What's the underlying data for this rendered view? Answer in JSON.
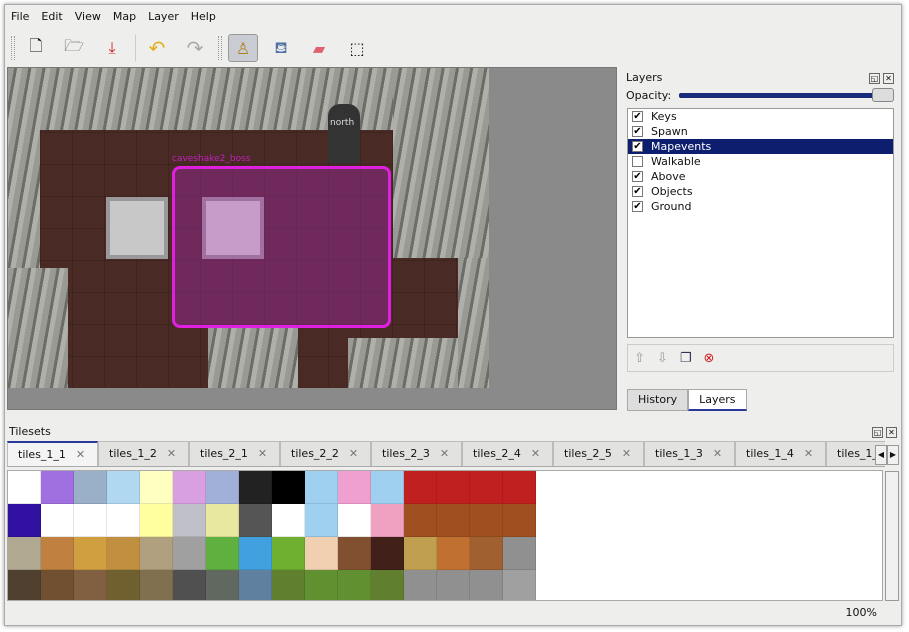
{
  "menu": [
    "File",
    "Edit",
    "View",
    "Map",
    "Layer",
    "Help"
  ],
  "toolbar": [
    {
      "name": "new-icon",
      "glyph": "🗋"
    },
    {
      "name": "open-icon",
      "glyph": "🗁"
    },
    {
      "name": "save-icon",
      "glyph": "⤓"
    },
    {
      "name": "undo-icon",
      "glyph": "↶"
    },
    {
      "name": "redo-icon",
      "glyph": "↷"
    },
    {
      "name": "stamp-brush-icon",
      "glyph": "♙"
    },
    {
      "name": "bucket-fill-icon",
      "glyph": "⛾"
    },
    {
      "name": "eraser-icon",
      "glyph": "▰"
    },
    {
      "name": "rect-select-icon",
      "glyph": "⬚"
    }
  ],
  "map": {
    "labels": {
      "object": "caveshake2_boss",
      "north": "north"
    }
  },
  "layers_panel": {
    "title": "Layers",
    "opacity_label": "Opacity:",
    "opacity": 1.0,
    "layers": [
      {
        "name": "Keys",
        "visible": true
      },
      {
        "name": "Spawn",
        "visible": true
      },
      {
        "name": "Mapevents",
        "visible": true,
        "selected": true
      },
      {
        "name": "Walkable",
        "visible": false
      },
      {
        "name": "Above",
        "visible": true
      },
      {
        "name": "Objects",
        "visible": true
      },
      {
        "name": "Ground",
        "visible": true
      }
    ],
    "tabs": [
      "History",
      "Layers"
    ],
    "active_tab": "Layers"
  },
  "tilesets": {
    "title": "Tilesets",
    "tabs": [
      "tiles_1_1",
      "tiles_1_2",
      "tiles_2_1",
      "tiles_2_2",
      "tiles_2_3",
      "tiles_2_4",
      "tiles_2_5",
      "tiles_1_3",
      "tiles_1_4",
      "tiles_1_"
    ],
    "tile_colors": [
      "#fff",
      "#a070e0",
      "#9ab0c8",
      "#b0d8f0",
      "#ffffc0",
      "#d8a0e0",
      "#a0b0d8",
      "#222",
      "#000",
      "#9fd0f0",
      "#f0a0d0",
      "#a0d0f0",
      "#c02020",
      "#c02020",
      "#c02020",
      "#c02020",
      "#3010a0",
      "#fff",
      "#fff",
      "#fff",
      "#ffffa0",
      "#c0c0c8",
      "#e8e8a0",
      "#555",
      "#fff",
      "#a0d0f0",
      "#fff",
      "#f0a0c0",
      "#a05020",
      "#a05020",
      "#a05020",
      "#a05020",
      "#b0a890",
      "#c08040",
      "#d0a040",
      "#c09040",
      "#b0a080",
      "#a0a0a0",
      "#60b040",
      "#40a0e0",
      "#70b030",
      "#f0d0b0",
      "#805030",
      "#402018",
      "#c0a050",
      "#c07030",
      "#a06030",
      "#909090",
      "#504030",
      "#705030",
      "#806040",
      "#706030",
      "#807050",
      "#505050",
      "#606860",
      "#6080a0",
      "#608030",
      "#609030",
      "#609030",
      "#608030",
      "#909090",
      "#909090",
      "#909090",
      "#a0a0a0"
    ]
  },
  "status": {
    "zoom": "100%"
  }
}
